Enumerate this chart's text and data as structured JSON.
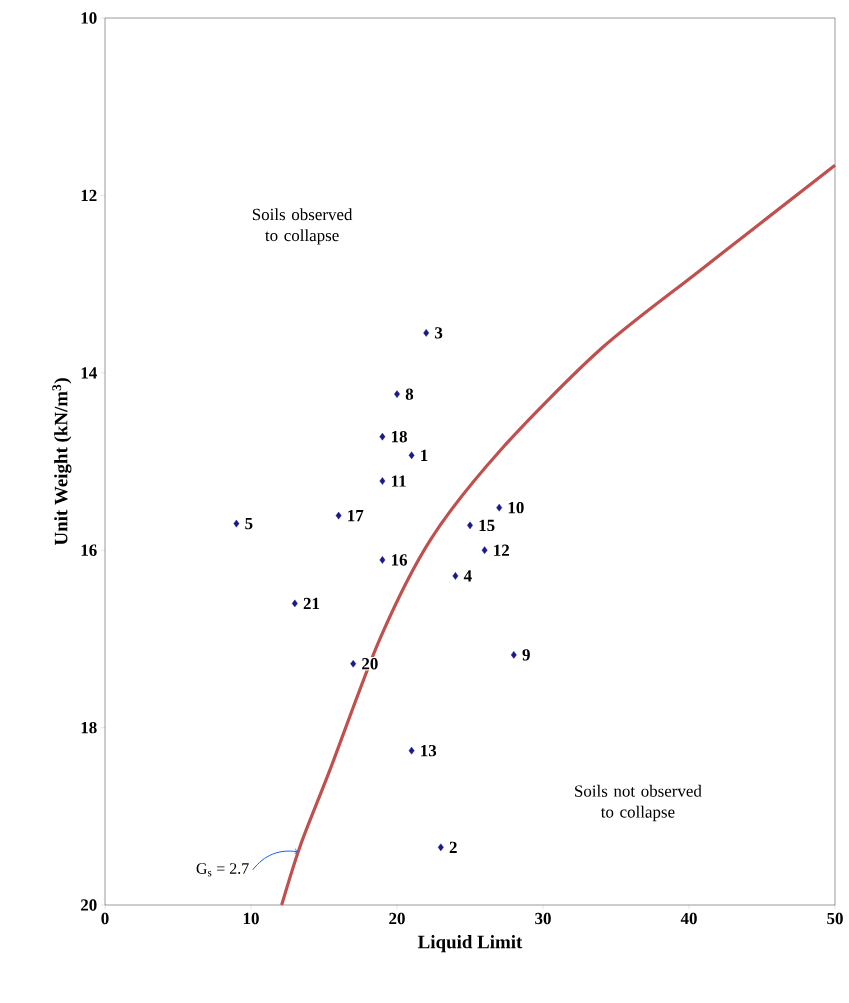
{
  "chart_data": {
    "type": "scatter",
    "xlabel": "Liquid Limit",
    "ylabel": "Unit Weight (kN/m$^{3}$)",
    "xlim": [
      0,
      50
    ],
    "ylim": [
      20,
      10
    ],
    "xticks": [
      0,
      10,
      20,
      30,
      40,
      50
    ],
    "yticks": [
      10,
      12,
      14,
      16,
      18,
      20
    ],
    "grid": false,
    "series": [
      {
        "type": "line",
        "color": "#c0504d",
        "x": [
          12.1,
          13.4,
          15.4,
          18.8,
          22.3,
          27.1,
          33.9,
          40.8,
          50
        ],
        "values": [
          20,
          19.32,
          18.48,
          17.01,
          15.88,
          14.87,
          13.74,
          12.84,
          11.66
        ]
      },
      {
        "color": "#1a1a8c",
        "marker": "diamond",
        "x": [
          22,
          20,
          19,
          21,
          19,
          25,
          27,
          9,
          16,
          26,
          19,
          24,
          13,
          17,
          28,
          21,
          23
        ],
        "values": [
          13.55,
          14.24,
          14.72,
          14.93,
          15.22,
          15.72,
          15.52,
          15.7,
          15.61,
          16.0,
          16.11,
          16.29,
          16.6,
          17.28,
          17.18,
          18.26,
          19.35
        ]
      }
    ],
    "annotations": [
      "Soils observed to collapse",
      "Soils not observed to collapse",
      {
        "text": "G$_{s}$ = 2.7",
        "x": 13.2,
        "y": 19.4
      },
      {
        "text": "3",
        "x": 22,
        "y": 13.55
      },
      {
        "text": "8",
        "x": 20,
        "y": 14.24
      },
      {
        "text": "18",
        "x": 19,
        "y": 14.72
      },
      {
        "text": "1",
        "x": 21,
        "y": 14.93
      },
      {
        "text": "11",
        "x": 19,
        "y": 15.22
      },
      {
        "text": "15",
        "x": 25,
        "y": 15.72
      },
      {
        "text": "10",
        "x": 27,
        "y": 15.52
      },
      {
        "text": "5",
        "x": 9,
        "y": 15.7
      },
      {
        "text": "17",
        "x": 16,
        "y": 15.61
      },
      {
        "text": "12",
        "x": 26,
        "y": 16.0
      },
      {
        "text": "16",
        "x": 19,
        "y": 16.11
      },
      {
        "text": "4",
        "x": 24,
        "y": 16.29
      },
      {
        "text": "21",
        "x": 13,
        "y": 16.6
      },
      {
        "text": "20",
        "x": 17,
        "y": 17.28
      },
      {
        "text": "9",
        "x": 28,
        "y": 17.18
      },
      {
        "text": "13",
        "x": 21,
        "y": 18.26
      },
      {
        "text": "2",
        "x": 23,
        "y": 19.35
      }
    ]
  }
}
